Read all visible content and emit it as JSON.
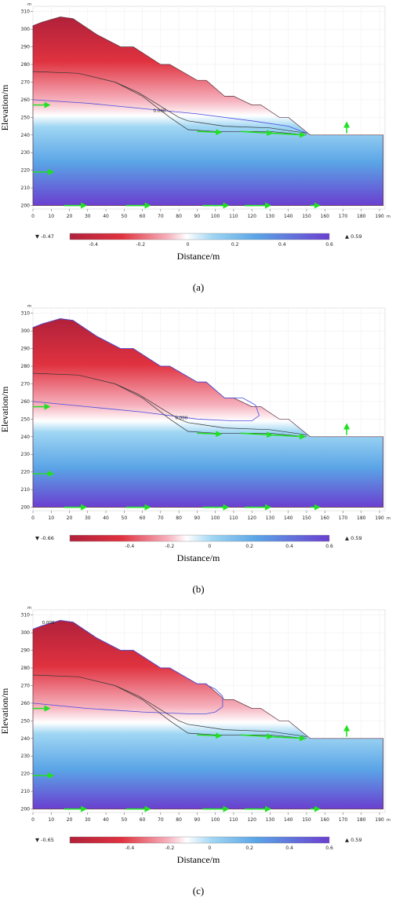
{
  "chart_data": [
    {
      "type": "heatmap",
      "caption": "(a)",
      "xlabel": "Distance/m",
      "ylabel": "Elevation/m",
      "x_unit": "m",
      "y_unit": "m",
      "xlim": [
        0,
        193
      ],
      "ylim": [
        198,
        313
      ],
      "x_ticks": [
        0,
        10,
        20,
        30,
        40,
        50,
        60,
        70,
        80,
        90,
        100,
        110,
        120,
        130,
        140,
        150,
        160,
        170,
        180,
        190
      ],
      "y_ticks": [
        200,
        210,
        220,
        230,
        240,
        250,
        260,
        270,
        280,
        290,
        300,
        310
      ],
      "colorbar": {
        "min_label": "-0.47",
        "max_label": "0.59",
        "ticks": [
          "-0.4",
          "-0.2",
          "0",
          "0.2",
          "0.4",
          "0.6"
        ],
        "range": [
          -0.5,
          0.6
        ]
      },
      "contour_label": {
        "text": "0.000",
        "x": 66,
        "y": 253
      },
      "slope_surface": [
        [
          0,
          302
        ],
        [
          5,
          304
        ],
        [
          15,
          307
        ],
        [
          22,
          306
        ],
        [
          35,
          297
        ],
        [
          48,
          290
        ],
        [
          55,
          290
        ],
        [
          70,
          280
        ],
        [
          75,
          280
        ],
        [
          90,
          271
        ],
        [
          95,
          271
        ],
        [
          105,
          262
        ],
        [
          110,
          262
        ],
        [
          120,
          257
        ],
        [
          125,
          257
        ],
        [
          135,
          250
        ],
        [
          140,
          250
        ],
        [
          152,
          240
        ],
        [
          192,
          240
        ]
      ],
      "zero_contour": [
        [
          0,
          260
        ],
        [
          30,
          258
        ],
        [
          60,
          255
        ],
        [
          90,
          252
        ],
        [
          120,
          248
        ],
        [
          140,
          245
        ],
        [
          150,
          241
        ]
      ],
      "slip_line_upper": [
        [
          0,
          276
        ],
        [
          25,
          275
        ],
        [
          45,
          270
        ],
        [
          58,
          264
        ],
        [
          72,
          255
        ],
        [
          80,
          250
        ],
        [
          85,
          248
        ],
        [
          105,
          245
        ],
        [
          130,
          244
        ],
        [
          150,
          241
        ]
      ],
      "slip_line_lower": [
        [
          45,
          270
        ],
        [
          60,
          262
        ],
        [
          75,
          250
        ],
        [
          85,
          243
        ],
        [
          100,
          242
        ],
        [
          130,
          242
        ],
        [
          150,
          240
        ]
      ],
      "flow_arrows": [
        {
          "x": 0,
          "y": 257,
          "dx": 9,
          "dy": 0
        },
        {
          "x": 0,
          "y": 219,
          "dx": 11,
          "dy": 0
        },
        {
          "x": 17,
          "y": 200,
          "dx": 12,
          "dy": 0
        },
        {
          "x": 51,
          "y": 200,
          "dx": 13,
          "dy": 0
        },
        {
          "x": 93,
          "y": 200,
          "dx": 14,
          "dy": 0
        },
        {
          "x": 116,
          "y": 200,
          "dx": 14,
          "dy": 0
        },
        {
          "x": 152,
          "y": 200,
          "dx": 5,
          "dy": 0
        },
        {
          "x": 90,
          "y": 242,
          "dx": 13,
          "dy": -0.5
        },
        {
          "x": 114,
          "y": 242,
          "dx": 17,
          "dy": -1
        },
        {
          "x": 131,
          "y": 241,
          "dx": 18,
          "dy": -1
        },
        {
          "x": 172,
          "y": 241,
          "dx": 0,
          "dy": 6
        }
      ],
      "blue_outline": []
    },
    {
      "type": "heatmap",
      "caption": "(b)",
      "xlabel": "Distance/m",
      "ylabel": "Elevation/m",
      "x_unit": "m",
      "y_unit": "m",
      "xlim": [
        0,
        193
      ],
      "ylim": [
        198,
        313
      ],
      "x_ticks": [
        0,
        10,
        20,
        30,
        40,
        50,
        60,
        70,
        80,
        90,
        100,
        110,
        120,
        130,
        140,
        150,
        160,
        170,
        180,
        190
      ],
      "y_ticks": [
        200,
        210,
        220,
        230,
        240,
        250,
        260,
        270,
        280,
        290,
        300,
        310
      ],
      "colorbar": {
        "min_label": "-0.66",
        "max_label": "0.59",
        "ticks": [
          "-0.4",
          "-0.2",
          "0",
          "0.2",
          "0.4",
          "0.6"
        ],
        "range": [
          -0.7,
          0.6
        ]
      },
      "contour_label": {
        "text": "0.000",
        "x": 78,
        "y": 250
      },
      "slope_surface": [
        [
          0,
          302
        ],
        [
          5,
          304
        ],
        [
          15,
          307
        ],
        [
          22,
          306
        ],
        [
          35,
          297
        ],
        [
          48,
          290
        ],
        [
          55,
          290
        ],
        [
          70,
          280
        ],
        [
          75,
          280
        ],
        [
          90,
          271
        ],
        [
          95,
          271
        ],
        [
          105,
          262
        ],
        [
          110,
          262
        ],
        [
          120,
          257
        ],
        [
          125,
          257
        ],
        [
          135,
          250
        ],
        [
          140,
          250
        ],
        [
          152,
          240
        ],
        [
          192,
          240
        ]
      ],
      "zero_contour": [
        [
          0,
          260
        ],
        [
          30,
          257
        ],
        [
          60,
          254
        ],
        [
          90,
          250
        ],
        [
          110,
          249
        ],
        [
          120,
          249
        ],
        [
          124,
          252
        ],
        [
          122,
          258
        ],
        [
          115,
          262
        ],
        [
          110,
          262
        ]
      ],
      "slip_line_upper": [
        [
          0,
          276
        ],
        [
          25,
          275
        ],
        [
          45,
          270
        ],
        [
          58,
          264
        ],
        [
          72,
          255
        ],
        [
          80,
          250
        ],
        [
          85,
          248
        ],
        [
          105,
          245
        ],
        [
          130,
          244
        ],
        [
          150,
          241
        ]
      ],
      "slip_line_lower": [
        [
          45,
          270
        ],
        [
          60,
          262
        ],
        [
          75,
          250
        ],
        [
          85,
          243
        ],
        [
          100,
          242
        ],
        [
          130,
          242
        ],
        [
          150,
          240
        ]
      ],
      "flow_arrows": [
        {
          "x": 0,
          "y": 257,
          "dx": 9,
          "dy": 0
        },
        {
          "x": 0,
          "y": 219,
          "dx": 11,
          "dy": 0
        },
        {
          "x": 17,
          "y": 200,
          "dx": 12,
          "dy": 0
        },
        {
          "x": 51,
          "y": 200,
          "dx": 13,
          "dy": 0
        },
        {
          "x": 93,
          "y": 200,
          "dx": 14,
          "dy": 0
        },
        {
          "x": 116,
          "y": 200,
          "dx": 14,
          "dy": 0
        },
        {
          "x": 152,
          "y": 200,
          "dx": 5,
          "dy": 0
        },
        {
          "x": 90,
          "y": 242,
          "dx": 13,
          "dy": -0.5
        },
        {
          "x": 114,
          "y": 242,
          "dx": 17,
          "dy": -1
        },
        {
          "x": 131,
          "y": 241,
          "dx": 18,
          "dy": -1
        },
        {
          "x": 172,
          "y": 241,
          "dx": 0,
          "dy": 6
        }
      ],
      "blue_outline": [
        [
          0,
          302
        ],
        [
          5,
          304
        ],
        [
          15,
          307
        ],
        [
          22,
          306
        ],
        [
          35,
          297
        ],
        [
          48,
          290
        ],
        [
          55,
          290
        ],
        [
          70,
          280
        ],
        [
          75,
          280
        ],
        [
          90,
          271
        ],
        [
          95,
          271
        ],
        [
          105,
          262
        ],
        [
          110,
          262
        ]
      ]
    },
    {
      "type": "heatmap",
      "caption": "(c)",
      "xlabel": "Distance/m",
      "ylabel": "Elevation/m",
      "x_unit": "m",
      "y_unit": "m",
      "xlim": [
        0,
        193
      ],
      "ylim": [
        198,
        313
      ],
      "x_ticks": [
        0,
        10,
        20,
        30,
        40,
        50,
        60,
        70,
        80,
        90,
        100,
        110,
        120,
        130,
        140,
        150,
        160,
        170,
        180,
        190
      ],
      "y_ticks": [
        200,
        210,
        220,
        230,
        240,
        250,
        260,
        270,
        280,
        290,
        300,
        310
      ],
      "colorbar": {
        "min_label": "-0.65",
        "max_label": "0.59",
        "ticks": [
          "-0.4",
          "-0.2",
          "0",
          "0.2",
          "0.4",
          "0.6"
        ],
        "range": [
          -0.7,
          0.6
        ]
      },
      "contour_label": {
        "text": "0.000",
        "x": 5,
        "y": 305
      },
      "slope_surface": [
        [
          0,
          302
        ],
        [
          5,
          304
        ],
        [
          15,
          307
        ],
        [
          22,
          306
        ],
        [
          35,
          297
        ],
        [
          48,
          290
        ],
        [
          55,
          290
        ],
        [
          70,
          280
        ],
        [
          75,
          280
        ],
        [
          90,
          271
        ],
        [
          95,
          271
        ],
        [
          105,
          262
        ],
        [
          110,
          262
        ],
        [
          120,
          257
        ],
        [
          125,
          257
        ],
        [
          135,
          250
        ],
        [
          140,
          250
        ],
        [
          152,
          240
        ],
        [
          192,
          240
        ]
      ],
      "zero_contour": [
        [
          0,
          260
        ],
        [
          30,
          257
        ],
        [
          60,
          255
        ],
        [
          85,
          254
        ],
        [
          95,
          254
        ],
        [
          100,
          255
        ],
        [
          104,
          258
        ],
        [
          104,
          264
        ],
        [
          100,
          268
        ],
        [
          96,
          270
        ],
        [
          95,
          271
        ]
      ],
      "slip_line_upper": [
        [
          0,
          276
        ],
        [
          25,
          275
        ],
        [
          45,
          270
        ],
        [
          58,
          264
        ],
        [
          72,
          255
        ],
        [
          80,
          250
        ],
        [
          85,
          248
        ],
        [
          105,
          245
        ],
        [
          130,
          244
        ],
        [
          150,
          241
        ]
      ],
      "slip_line_lower": [
        [
          45,
          270
        ],
        [
          60,
          262
        ],
        [
          75,
          250
        ],
        [
          85,
          243
        ],
        [
          100,
          242
        ],
        [
          130,
          242
        ],
        [
          150,
          240
        ]
      ],
      "flow_arrows": [
        {
          "x": 0,
          "y": 257,
          "dx": 9,
          "dy": 0
        },
        {
          "x": 0,
          "y": 219,
          "dx": 11,
          "dy": 0
        },
        {
          "x": 17,
          "y": 200,
          "dx": 12,
          "dy": 0
        },
        {
          "x": 51,
          "y": 200,
          "dx": 13,
          "dy": 0
        },
        {
          "x": 93,
          "y": 200,
          "dx": 14,
          "dy": 0
        },
        {
          "x": 116,
          "y": 200,
          "dx": 14,
          "dy": 0
        },
        {
          "x": 152,
          "y": 200,
          "dx": 5,
          "dy": 0
        },
        {
          "x": 90,
          "y": 242,
          "dx": 13,
          "dy": -0.5
        },
        {
          "x": 114,
          "y": 242,
          "dx": 17,
          "dy": -1
        },
        {
          "x": 131,
          "y": 241,
          "dx": 18,
          "dy": -1
        },
        {
          "x": 172,
          "y": 241,
          "dx": 0,
          "dy": 6
        }
      ],
      "blue_outline": [
        [
          0,
          302
        ],
        [
          5,
          304
        ],
        [
          15,
          307
        ],
        [
          22,
          306
        ],
        [
          35,
          297
        ],
        [
          48,
          290
        ],
        [
          55,
          290
        ],
        [
          70,
          280
        ],
        [
          75,
          280
        ],
        [
          90,
          271
        ],
        [
          95,
          271
        ]
      ]
    }
  ],
  "colors": {
    "negative": "#c8283a",
    "zero": "#ffffff",
    "positive": "#6a3fd0",
    "arrow": "#22e022",
    "zero_contour": "#4a4ae0",
    "slip_line": "#333333"
  }
}
